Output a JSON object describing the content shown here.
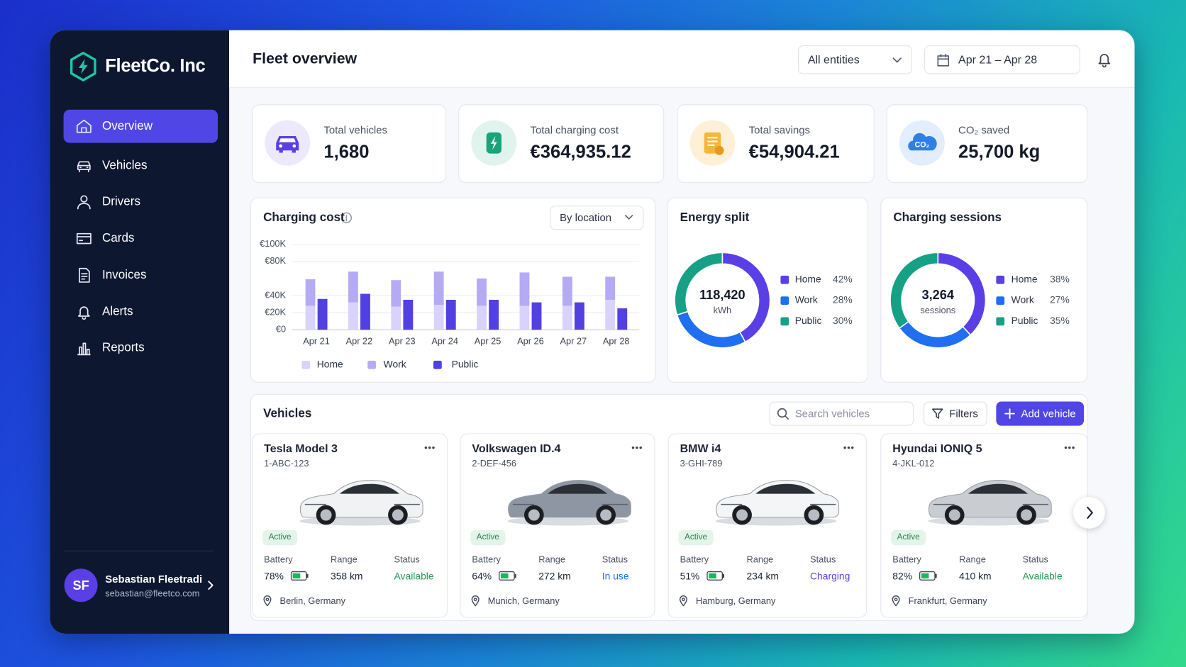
{
  "sidebar": {
    "brand": "FleetCo. Inc",
    "nav": [
      "Overview",
      "Vehicles",
      "Drivers",
      "Cards",
      "Invoices",
      "Alerts",
      "Reports"
    ],
    "user": {
      "initials": "SF",
      "name": "Sebastian Fleetradi",
      "email": "sebastian@fleetco.com"
    }
  },
  "header": {
    "title": "Fleet overview",
    "entity_filter": "All entities",
    "date_range": "Apr 21 – Apr 28"
  },
  "kpis": [
    {
      "label": "Total vehicles",
      "value": "1,680"
    },
    {
      "label": "Total charging cost",
      "value": "€364,935.12"
    },
    {
      "label": "Total savings",
      "value": "€54,904.21"
    },
    {
      "label": "CO₂ saved",
      "value": "25,700 kg",
      "icon_label": "CO₂"
    }
  ],
  "chart_data": [
    {
      "type": "bar",
      "title": "Charging cost",
      "control": "By location",
      "categories": [
        "Apr 21",
        "Apr 22",
        "Apr 23",
        "Apr 24",
        "Apr 25",
        "Apr 26",
        "Apr 27",
        "Apr 28"
      ],
      "series": [
        {
          "name": "Home",
          "color": "#d9d3fb",
          "stack": 1,
          "values": [
            28000,
            32000,
            27000,
            29000,
            28000,
            28000,
            28000,
            35000
          ]
        },
        {
          "name": "Work",
          "color": "#b5abf5",
          "stack": 1,
          "values": [
            31000,
            36000,
            31000,
            39000,
            32000,
            39000,
            34000,
            27000
          ]
        },
        {
          "name": "Public",
          "color": "#5140e2",
          "stack": 2,
          "values": [
            36000,
            42000,
            35000,
            35000,
            35000,
            32000,
            32000,
            25000
          ]
        }
      ],
      "ylim": [
        0,
        100000
      ],
      "yticks": [
        {
          "value": 0,
          "label": "€0"
        },
        {
          "value": 20000,
          "label": "€20K"
        },
        {
          "value": 40000,
          "label": "€40K"
        },
        {
          "value": 80000,
          "label": "€80K"
        },
        {
          "value": 100000,
          "label": "€100K"
        }
      ],
      "grid": true
    },
    {
      "type": "donut",
      "title": "Energy split",
      "center_value": "118,420",
      "center_unit": "kWh",
      "categories": [
        "Home",
        "Work",
        "Public"
      ],
      "values": [
        42,
        28,
        30
      ],
      "value_labels": [
        "42%",
        "28%",
        "30%"
      ],
      "colors": [
        "#5b3fe6",
        "#1f6ff0",
        "#16a086"
      ]
    },
    {
      "type": "donut",
      "title": "Charging sessions",
      "center_value": "3,264",
      "center_unit": "sessions",
      "categories": [
        "Home",
        "Work",
        "Public"
      ],
      "values": [
        38,
        27,
        35
      ],
      "value_labels": [
        "38%",
        "27%",
        "35%"
      ],
      "colors": [
        "#5b3fe6",
        "#1f6ff0",
        "#16a086"
      ]
    }
  ],
  "vehicles": {
    "title": "Vehicles",
    "search_placeholder": "Search vehicles",
    "filters": "Filters",
    "add": "Add vehicle",
    "field_labels": {
      "battery": "Battery",
      "range": "Range",
      "status": "Status"
    },
    "items": [
      {
        "name": "Tesla Model 3",
        "plate": "1-ABC-123",
        "badge": "Active",
        "battery": "78%",
        "range": "358 km",
        "status": "Available",
        "status_color": "#1f9d55",
        "location": "Berlin, Germany",
        "car_color": "#f1f2f4"
      },
      {
        "name": "Volkswagen ID.4",
        "plate": "2-DEF-456",
        "badge": "Active",
        "battery": "64%",
        "range": "272 km",
        "status": "In use",
        "status_color": "#1f6ff0",
        "location": "Munich, Germany",
        "car_color": "#8e96a3"
      },
      {
        "name": "BMW i4",
        "plate": "3-GHI-789",
        "badge": "Active",
        "battery": "51%",
        "range": "234 km",
        "status": "Charging",
        "status_color": "#5b3fe6",
        "location": "Hamburg, Germany",
        "car_color": "#f4f5f7"
      },
      {
        "name": "Hyundai IONIQ 5",
        "plate": "4-JKL-012",
        "badge": "Active",
        "battery": "82%",
        "range": "410 km",
        "status": "Available",
        "status_color": "#1f9d55",
        "location": "Frankfurt, Germany",
        "car_color": "#c9ccd1"
      }
    ]
  }
}
